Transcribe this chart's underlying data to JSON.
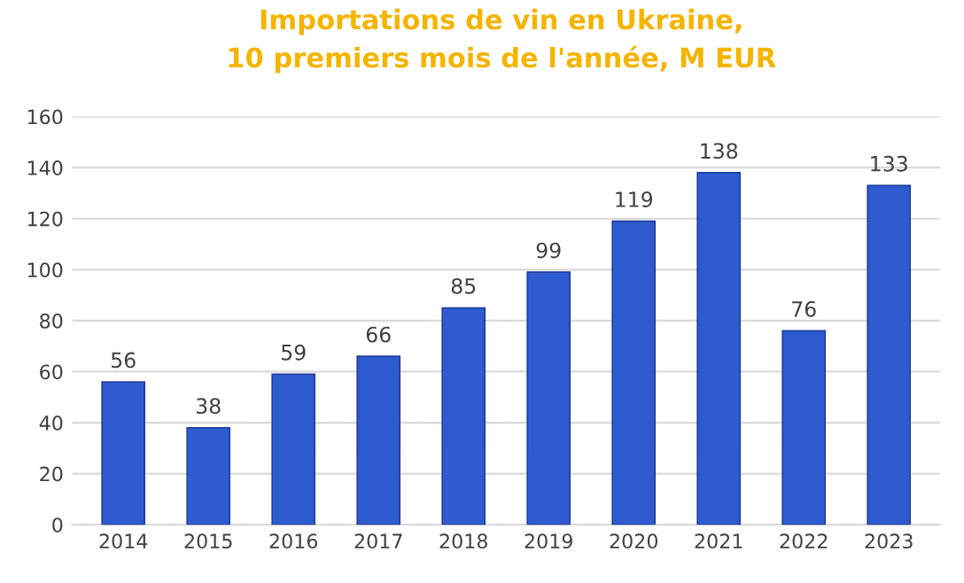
{
  "chart_data": {
    "type": "bar",
    "title": "Importations de vin en Ukraine,\n10 premiers mois de l'année, M EUR",
    "categories": [
      "2014",
      "2015",
      "2016",
      "2017",
      "2018",
      "2019",
      "2020",
      "2021",
      "2022",
      "2023"
    ],
    "values": [
      56,
      38,
      59,
      66,
      85,
      99,
      119,
      138,
      76,
      133
    ],
    "color": "#2f5bd0",
    "ylim": [
      0,
      160
    ],
    "yticks": [
      0,
      20,
      40,
      60,
      80,
      100,
      120,
      140,
      160
    ],
    "grid": "y",
    "data_labels": true
  }
}
